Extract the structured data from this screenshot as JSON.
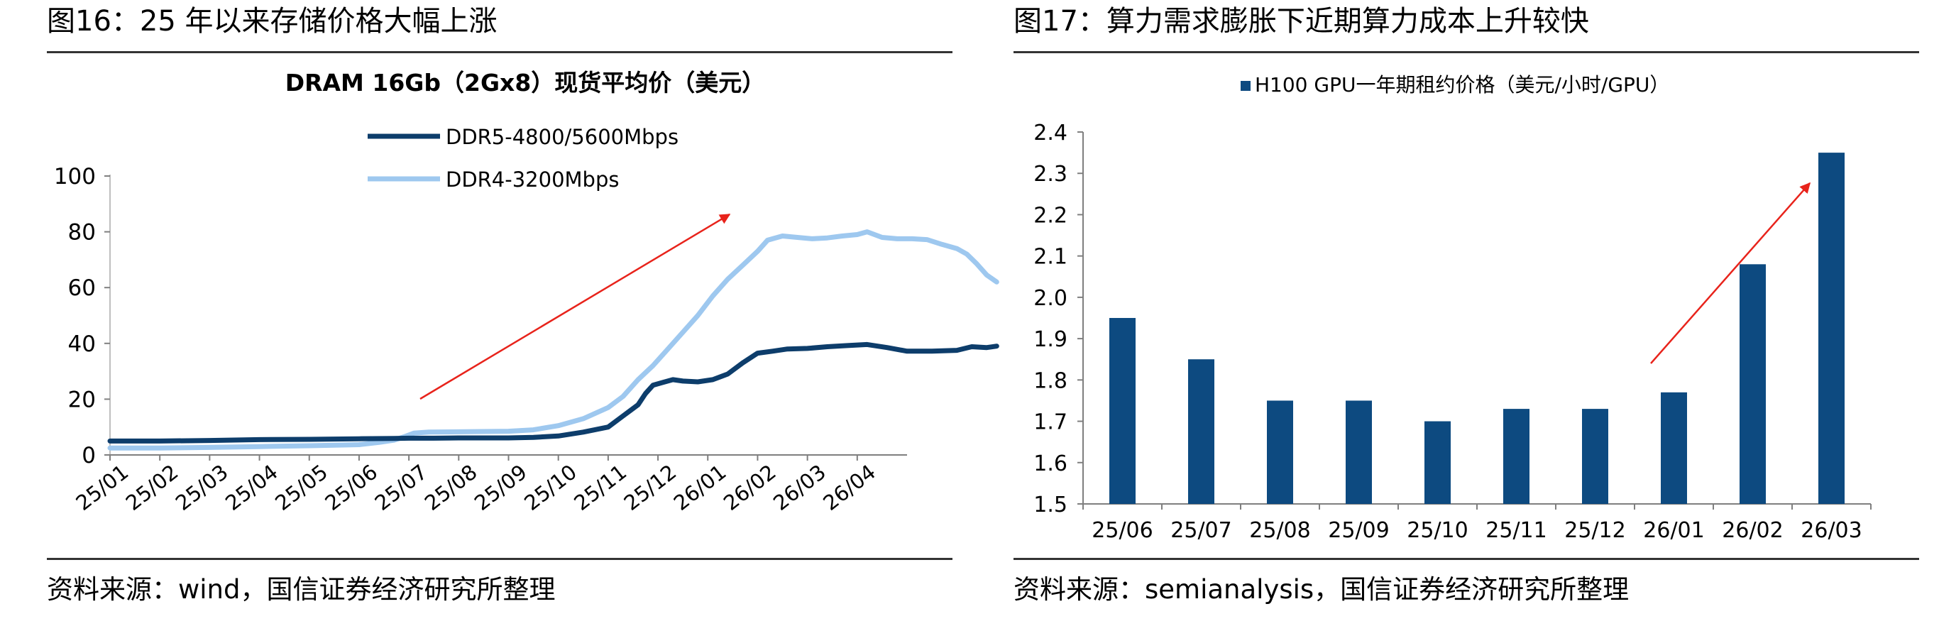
{
  "left": {
    "figure_title": "图16：25 年以来存储价格大幅上涨",
    "source": "资料来源：wind，国信证券经济研究所整理"
  },
  "right": {
    "figure_title": "图17：算力需求膨胀下近期算力成本上升较快",
    "source": "资料来源：semianalysis，国信证券经济研究所整理"
  },
  "colors": {
    "dark_blue": "#0d3d6b",
    "light_blue": "#9ec8ef",
    "arrow_red": "#e8231b",
    "bar": "#0d4a80"
  },
  "chart_data": [
    {
      "type": "line",
      "title": "DRAM 16Gb（2Gx8）现货平均价（美元）",
      "legend_placement": "top-center",
      "ylim": [
        0,
        100
      ],
      "yticks": [
        0,
        20,
        40,
        60,
        80,
        100
      ],
      "x_tick_labels": [
        "25/01",
        "25/02",
        "25/03",
        "25/04",
        "25/05",
        "25/06",
        "25/07",
        "25/08",
        "25/09",
        "25/10",
        "25/11",
        "25/12",
        "26/01",
        "26/02",
        "26/03",
        "26/04"
      ],
      "x_range_months": [
        0,
        16
      ],
      "series": [
        {
          "name": "DDR5-4800/5600Mbps",
          "color": "#0d3d6b",
          "points": [
            [
              0,
              5
            ],
            [
              1,
              5
            ],
            [
              2,
              5.2
            ],
            [
              3,
              5.5
            ],
            [
              4,
              5.6
            ],
            [
              5,
              5.8
            ],
            [
              5.7,
              5.9
            ],
            [
              6,
              6
            ],
            [
              6.5,
              6
            ],
            [
              7,
              6.1
            ],
            [
              7.5,
              6.1
            ],
            [
              8,
              6.1
            ],
            [
              8.5,
              6.3
            ],
            [
              9,
              6.8
            ],
            [
              9.5,
              8.2
            ],
            [
              10,
              10
            ],
            [
              10.3,
              14
            ],
            [
              10.6,
              18
            ],
            [
              10.75,
              22
            ],
            [
              10.9,
              25
            ],
            [
              11.1,
              26
            ],
            [
              11.3,
              27
            ],
            [
              11.5,
              26.5
            ],
            [
              11.8,
              26.2
            ],
            [
              12.1,
              27
            ],
            [
              12.4,
              29
            ],
            [
              12.7,
              33
            ],
            [
              13,
              36.5
            ],
            [
              13.3,
              37.2
            ],
            [
              13.6,
              38
            ],
            [
              14,
              38.2
            ],
            [
              14.4,
              38.8
            ],
            [
              14.8,
              39.2
            ],
            [
              15.2,
              39.6
            ],
            [
              15.6,
              38.5
            ],
            [
              16,
              37.2
            ],
            [
              16.5,
              37.2
            ],
            [
              17,
              37.5
            ],
            [
              17.3,
              38.8
            ],
            [
              17.6,
              38.5
            ],
            [
              17.8,
              39
            ]
          ]
        },
        {
          "name": "DDR4-3200Mbps",
          "color": "#9ec8ef",
          "points": [
            [
              0,
              2.5
            ],
            [
              1,
              2.5
            ],
            [
              2,
              2.7
            ],
            [
              3,
              3
            ],
            [
              4,
              3.3
            ],
            [
              5,
              3.7
            ],
            [
              5.4,
              4.5
            ],
            [
              5.7,
              5.3
            ],
            [
              5.9,
              6.5
            ],
            [
              6.1,
              7.8
            ],
            [
              6.4,
              8.2
            ],
            [
              7,
              8.3
            ],
            [
              7.5,
              8.4
            ],
            [
              8,
              8.5
            ],
            [
              8.5,
              9
            ],
            [
              9,
              10.5
            ],
            [
              9.5,
              13
            ],
            [
              10,
              17
            ],
            [
              10.3,
              21
            ],
            [
              10.6,
              27
            ],
            [
              10.9,
              32
            ],
            [
              11.2,
              38
            ],
            [
              11.5,
              44
            ],
            [
              11.8,
              50
            ],
            [
              12.1,
              57
            ],
            [
              12.4,
              63
            ],
            [
              12.7,
              68
            ],
            [
              13,
              73
            ],
            [
              13.2,
              77
            ],
            [
              13.5,
              78.5
            ],
            [
              13.8,
              78
            ],
            [
              14.1,
              77.5
            ],
            [
              14.4,
              77.8
            ],
            [
              14.7,
              78.5
            ],
            [
              15,
              79
            ],
            [
              15.2,
              80
            ],
            [
              15.5,
              78
            ],
            [
              15.8,
              77.5
            ],
            [
              16.1,
              77.5
            ],
            [
              16.4,
              77.2
            ],
            [
              16.7,
              75.5
            ],
            [
              17,
              74
            ],
            [
              17.2,
              72
            ],
            [
              17.4,
              68.5
            ],
            [
              17.6,
              64.5
            ],
            [
              17.8,
              62
            ]
          ]
        }
      ],
      "annotation": "red trend arrow pointing upward-right"
    },
    {
      "type": "bar",
      "title": "",
      "legend": "H100 GPU一年期租约价格（美元/小时/GPU）",
      "legend_placement": "top-center",
      "categories": [
        "25/06",
        "25/07",
        "25/08",
        "25/09",
        "25/10",
        "25/11",
        "25/12",
        "26/01",
        "26/02",
        "26/03"
      ],
      "values": [
        1.95,
        1.85,
        1.75,
        1.75,
        1.7,
        1.73,
        1.73,
        1.77,
        2.08,
        2.35
      ],
      "ylim": [
        1.5,
        2.4
      ],
      "yticks": [
        "1.5",
        "1.6",
        "1.7",
        "1.8",
        "1.9",
        "2.0",
        "2.1",
        "2.2",
        "2.3",
        "2.4"
      ],
      "annotation": "red trend arrow pointing upward-right"
    }
  ]
}
